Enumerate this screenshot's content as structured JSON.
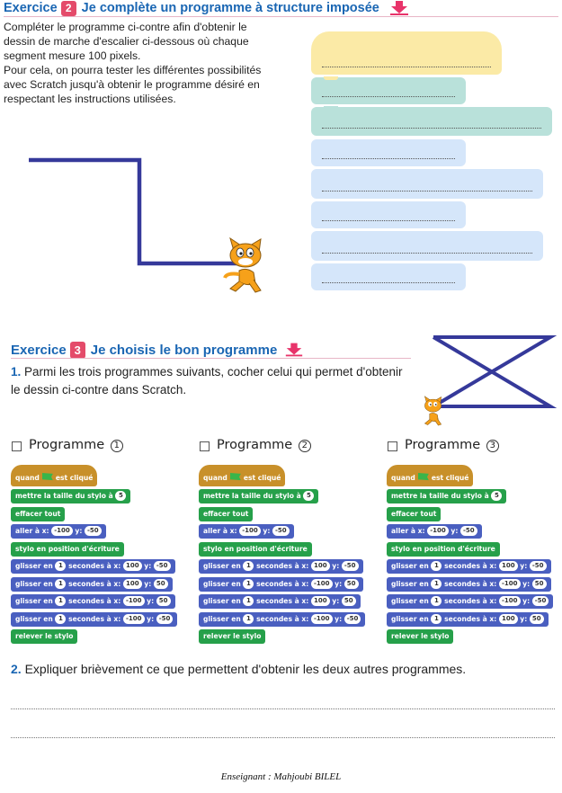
{
  "exercise2": {
    "word": "Exercice",
    "number": "2",
    "title": "Je complète un programme à structure imposée",
    "instructions": [
      "Compléter le programme ci-contre afin d'obtenir le",
      "dessin de marche d'escalier ci-dessous où chaque",
      "segment mesure 100 pixels.",
      "Pour cela, on pourra tester les différentes possibilités",
      "avec Scratch jusqu'à obtenir le programme désiré en",
      "respectant les instructions utilisées."
    ]
  },
  "exercise3": {
    "word": "Exercice",
    "number": "3",
    "title": "Je choisis le bon programme",
    "q1_number": "1.",
    "q1_lines": [
      "Parmi les trois programmes suivants, cocher celui qui permet d'obtenir",
      "le dessin ci-contre dans Scratch."
    ],
    "programs": [
      {
        "label": "Programme",
        "num": "1",
        "glide": [
          [
            "100",
            "-50"
          ],
          [
            "100",
            "50"
          ],
          [
            "-100",
            "50"
          ],
          [
            "-100",
            "-50"
          ]
        ]
      },
      {
        "label": "Programme",
        "num": "2",
        "glide": [
          [
            "100",
            "-50"
          ],
          [
            "-100",
            "50"
          ],
          [
            "100",
            "50"
          ],
          [
            "-100",
            "-50"
          ]
        ]
      },
      {
        "label": "Programme",
        "num": "3",
        "glide": [
          [
            "100",
            "-50"
          ],
          [
            "-100",
            "50"
          ],
          [
            "-100",
            "-50"
          ],
          [
            "100",
            "50"
          ]
        ]
      }
    ],
    "blocks": {
      "when": "quand",
      "clicked": "est cliqué",
      "pen_size": "mettre la taille du stylo à",
      "pen_size_value": "5",
      "clear": "effacer tout",
      "goto_prefix": "aller à x:",
      "goto_x": "-100",
      "goto_y_label": "y:",
      "goto_y": "-50",
      "pen_down": "stylo en position d'écriture",
      "glide_prefix": "glisser en",
      "glide_secs": "1",
      "glide_mid": "secondes à x:",
      "glide_y_label": "y:",
      "pen_up": "relever le stylo"
    },
    "q2_number": "2.",
    "q2_text": "Expliquer brièvement ce que permettent d'obtenir les deux autres programmes."
  },
  "footer": "Enseignant : Mahjoubi BILEL",
  "colors": {
    "title_blue": "#1a66b3",
    "badge_pink": "#e44b6a",
    "scratch_event": "#c8902a",
    "scratch_pen": "#26a04a",
    "scratch_motion": "#4a5fc0",
    "drawing_line": "#35399a"
  }
}
